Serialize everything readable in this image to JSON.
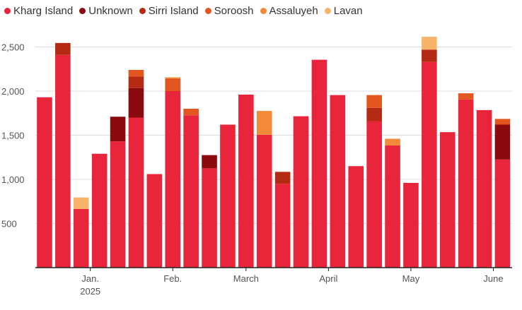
{
  "chart_data": {
    "type": "bar",
    "stacked": true,
    "title": "",
    "xlabel": "",
    "ylabel": "",
    "ylim": [
      0,
      2600
    ],
    "y_ticks": [
      500,
      1000,
      1500,
      2000,
      2500
    ],
    "y_tick_labels": [
      "500",
      "1,000",
      "1,500",
      "2,000",
      "2,500"
    ],
    "grid": true,
    "legend_position": "top-left",
    "x_labels": [
      {
        "index": 2.5,
        "label": "Jan.",
        "sub": "2025"
      },
      {
        "index": 7,
        "label": "Feb."
      },
      {
        "index": 11,
        "label": "March"
      },
      {
        "index": 15.5,
        "label": "April"
      },
      {
        "index": 20,
        "label": "May"
      },
      {
        "index": 24.5,
        "label": "June"
      }
    ],
    "series": [
      {
        "name": "Kharg Island",
        "color": "#e8253a",
        "values": [
          1930,
          2410,
          665,
          1290,
          1430,
          1700,
          1060,
          2000,
          1725,
          1125,
          1620,
          1960,
          1505,
          950,
          1715,
          2355,
          1955,
          1150,
          1660,
          1385,
          960,
          2330,
          1535,
          1905,
          1785,
          1225
        ]
      },
      {
        "name": "Unknown",
        "color": "#8b0a0d",
        "values": [
          0,
          0,
          0,
          0,
          280,
          335,
          0,
          0,
          0,
          150,
          0,
          0,
          0,
          0,
          0,
          0,
          0,
          0,
          0,
          0,
          0,
          0,
          0,
          0,
          0,
          395
        ]
      },
      {
        "name": "Sirri Island",
        "color": "#b52a12",
        "values": [
          0,
          135,
          0,
          0,
          0,
          130,
          0,
          0,
          0,
          0,
          0,
          0,
          0,
          135,
          0,
          0,
          0,
          0,
          150,
          0,
          0,
          140,
          0,
          0,
          0,
          0
        ]
      },
      {
        "name": "Soroosh",
        "color": "#e4561f",
        "values": [
          0,
          0,
          0,
          0,
          0,
          75,
          0,
          145,
          75,
          0,
          0,
          0,
          0,
          0,
          0,
          0,
          0,
          0,
          145,
          0,
          0,
          0,
          0,
          70,
          0,
          65
        ]
      },
      {
        "name": "Assaluyeh",
        "color": "#f28a3a",
        "values": [
          0,
          0,
          0,
          0,
          0,
          0,
          0,
          0,
          0,
          0,
          0,
          0,
          270,
          0,
          0,
          0,
          0,
          0,
          0,
          75,
          0,
          0,
          0,
          0,
          0,
          0
        ]
      },
      {
        "name": "Lavan",
        "color": "#f7b469",
        "values": [
          0,
          0,
          130,
          0,
          0,
          0,
          0,
          15,
          0,
          0,
          0,
          0,
          0,
          0,
          0,
          0,
          0,
          0,
          0,
          0,
          0,
          145,
          0,
          0,
          0,
          0
        ]
      }
    ]
  }
}
